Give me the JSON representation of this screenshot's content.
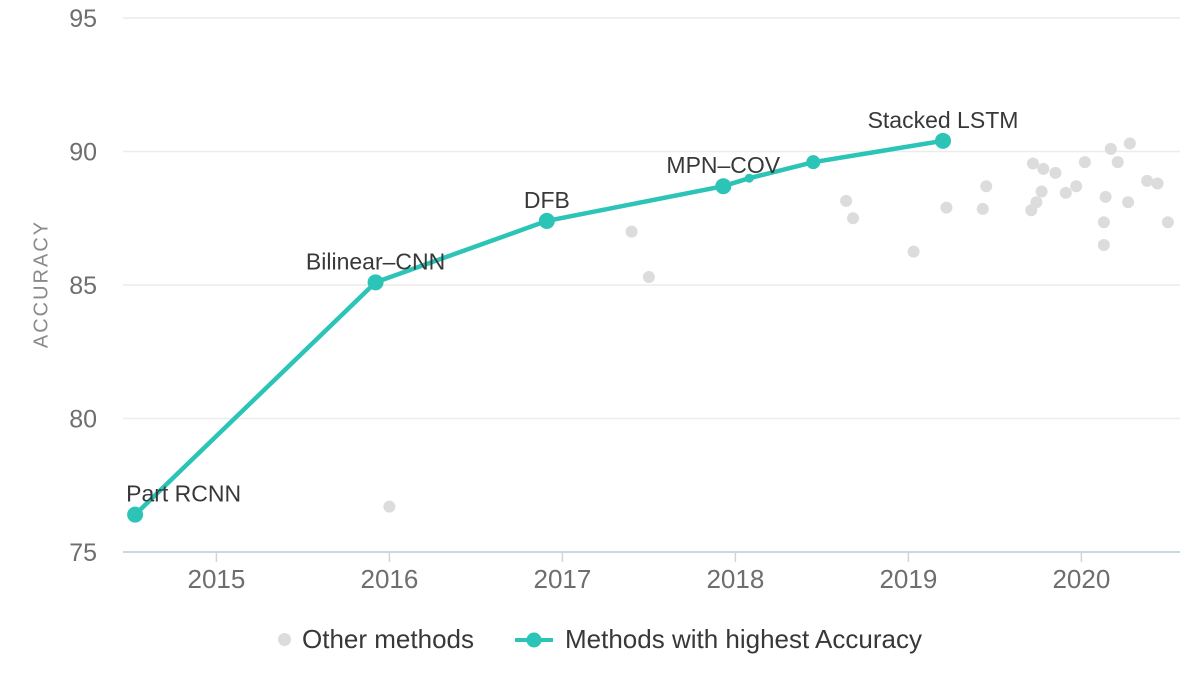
{
  "colors": {
    "accent": "#2bc4b6",
    "muted_point": "#dcdcdc",
    "grid": "#ececec",
    "axis_line": "#ccd6dd",
    "tick_text": "#6e6e6e",
    "axis_title_text": "#8a8a8a",
    "point_label_text": "#383838",
    "legend_text": "#383838",
    "background": "#ffffff"
  },
  "legend": {
    "items": [
      {
        "label": "Other methods",
        "marker": "dot"
      },
      {
        "label": "Methods with highest Accuracy",
        "marker": "line-dot"
      }
    ]
  },
  "chart_data": {
    "type": "scatter",
    "title": "",
    "xlabel": "",
    "ylabel": "ACCURACY",
    "xlim": [
      2014.46,
      2020.57
    ],
    "ylim": [
      75,
      95
    ],
    "x_ticks": [
      2015,
      2016,
      2017,
      2018,
      2019,
      2020
    ],
    "y_ticks": [
      75,
      80,
      85,
      90,
      95
    ],
    "grid": "horizontal",
    "legend_position": "bottom",
    "series": [
      {
        "name": "Other methods",
        "type": "scatter",
        "color": "#dcdcdc",
        "radius": 6,
        "points": [
          [
            2016.0,
            76.7
          ],
          [
            2017.4,
            87.0
          ],
          [
            2017.5,
            85.3
          ],
          [
            2018.64,
            88.15
          ],
          [
            2018.68,
            87.5
          ],
          [
            2019.03,
            86.25
          ],
          [
            2019.22,
            87.9
          ],
          [
            2019.43,
            87.85
          ],
          [
            2019.45,
            88.7
          ],
          [
            2019.71,
            87.8
          ],
          [
            2019.72,
            89.55
          ],
          [
            2019.74,
            88.1
          ],
          [
            2019.77,
            88.5
          ],
          [
            2019.78,
            89.35
          ],
          [
            2019.85,
            89.2
          ],
          [
            2019.91,
            88.45
          ],
          [
            2019.97,
            88.7
          ],
          [
            2020.02,
            89.6
          ],
          [
            2020.13,
            87.35
          ],
          [
            2020.13,
            86.5
          ],
          [
            2020.14,
            88.3
          ],
          [
            2020.17,
            90.1
          ],
          [
            2020.21,
            89.6
          ],
          [
            2020.27,
            88.1
          ],
          [
            2020.28,
            90.3
          ],
          [
            2020.38,
            88.9
          ],
          [
            2020.44,
            88.8
          ],
          [
            2020.5,
            87.35
          ]
        ]
      },
      {
        "name": "Methods with highest Accuracy",
        "type": "line+scatter",
        "color": "#2bc4b6",
        "line_width": 4.5,
        "points": [
          {
            "x": 2014.53,
            "y": 76.4,
            "r": 8,
            "label": "Part RCNN",
            "label_anchor": "start"
          },
          {
            "x": 2015.92,
            "y": 85.1,
            "r": 8,
            "label": "Bilinear–CNN"
          },
          {
            "x": 2016.91,
            "y": 87.4,
            "r": 8,
            "label": "DFB"
          },
          {
            "x": 2017.93,
            "y": 88.7,
            "r": 8,
            "label": "MPN–COV"
          },
          {
            "x": 2018.08,
            "y": 89.0,
            "r": 4.5
          },
          {
            "x": 2018.45,
            "y": 89.6,
            "r": 7
          },
          {
            "x": 2019.2,
            "y": 90.4,
            "r": 8,
            "label": "Stacked LSTM"
          }
        ]
      }
    ]
  }
}
